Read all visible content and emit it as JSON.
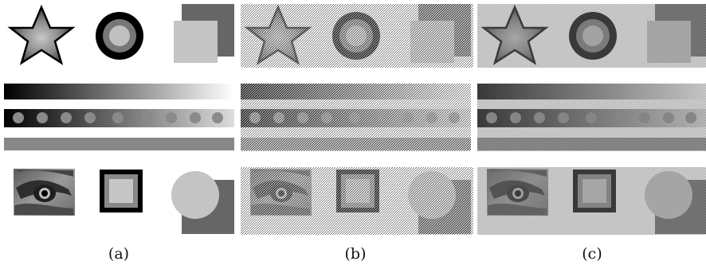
{
  "figure": {
    "panels": [
      {
        "caption": "(a)",
        "method": "grayscale"
      },
      {
        "caption": "(b)",
        "method": "coarse-dither"
      },
      {
        "caption": "(c)",
        "method": "fine-dither"
      }
    ],
    "colors": {
      "background": "#ffffff",
      "dark_gray": "#666666",
      "mid_gray": "#888888",
      "light_gray": "#c8c8c8",
      "black": "#000000"
    }
  }
}
